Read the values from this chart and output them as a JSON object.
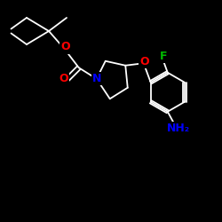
{
  "background_color": "#000000",
  "bond_color": "#ffffff",
  "atom_colors": {
    "N": "#0000ff",
    "O": "#ff0000",
    "F": "#00bb00",
    "NH2": "#0000ff",
    "C": "#ffffff"
  },
  "figsize": [
    2.5,
    2.5
  ],
  "dpi": 100,
  "lw": 1.3,
  "fontsize": 8
}
